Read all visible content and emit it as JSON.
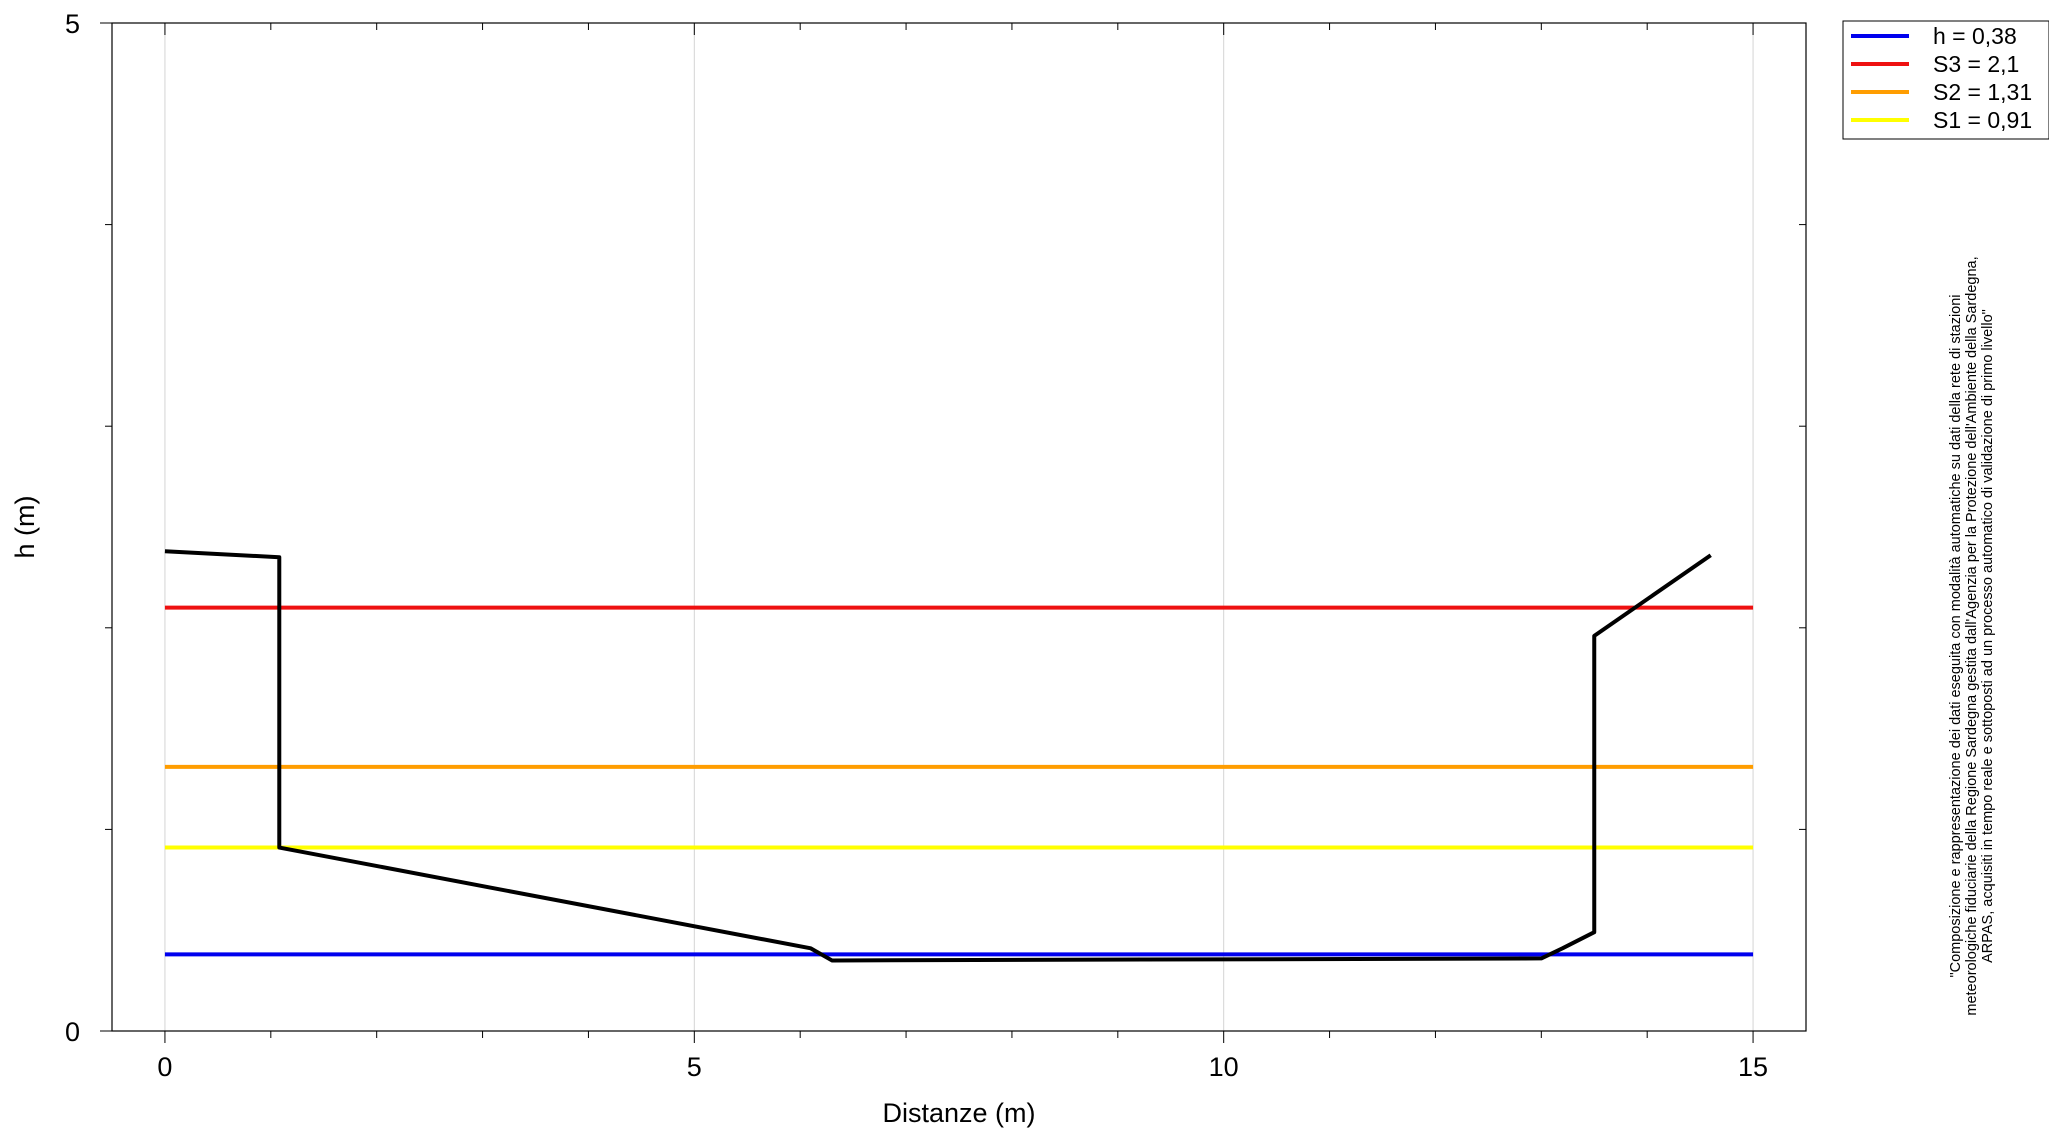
{
  "chart_data": {
    "type": "line",
    "xlabel": "Distanze (m)",
    "ylabel": "h (m)",
    "xlim": [
      -0.5,
      15.5
    ],
    "ylim": [
      0,
      5
    ],
    "xticks": [
      0,
      5,
      10,
      15
    ],
    "yticks": [
      0,
      5
    ],
    "x_minor_tick_step": 1,
    "y_minor_tick_step": 1,
    "grid": "vertical lines at major x ticks",
    "legend_position": "top-right, outside plot",
    "thresholds": [
      {
        "name": "h = 0,38",
        "value": 0.38,
        "color": "#0000ee"
      },
      {
        "name": "S3 = 2,1",
        "value": 2.1,
        "color": "#ee1111"
      },
      {
        "name": "S2 = 1,31",
        "value": 1.31,
        "color": "#ff9d00"
      },
      {
        "name": "S1 = 0,91",
        "value": 0.91,
        "color": "#ffff00"
      }
    ],
    "threshold_x_range": [
      0,
      15
    ],
    "profile": {
      "color": "#000000",
      "x": [
        0,
        1.08,
        1.08,
        6.1,
        6.3,
        13.0,
        13.2,
        13.5,
        13.5,
        14.6
      ],
      "y": [
        2.38,
        2.35,
        0.91,
        0.41,
        0.35,
        0.36,
        0.41,
        0.49,
        1.96,
        2.36
      ]
    }
  },
  "note": {
    "lines": [
      "\"Composizione e rappresentazione dei dati eseguita con modalità automatiche su dati della rete di stazioni",
      "meteorologiche fiduciarie della Regione Sardegna gestita dall'Agenzia per la Protezione dell'Ambiente della Sardegna,",
      "ARPAS, acquisiti in tempo reale e sottoposti ad un processo automatico di validazione di primo livello\""
    ]
  }
}
